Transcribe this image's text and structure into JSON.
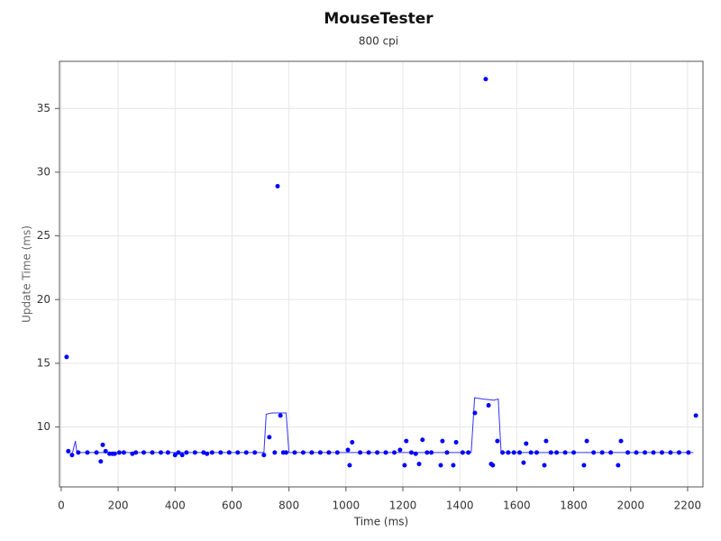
{
  "chart_data": {
    "type": "scatter",
    "title": "MouseTester",
    "subtitle": "800 cpi",
    "x_label": "Time (ms)",
    "y_label": "Update Time (ms)",
    "xlim": [
      -6,
      2254
    ],
    "ylim": [
      5.3,
      38.7
    ],
    "xticks": [
      0,
      200,
      400,
      600,
      800,
      1000,
      1200,
      1400,
      1600,
      1800,
      2000,
      2200
    ],
    "yticks": [
      10,
      15,
      20,
      25,
      30,
      35
    ],
    "grid": true,
    "points": {
      "color": "#0000ff",
      "x": [
        19,
        25,
        38,
        60,
        92,
        124,
        139,
        146,
        156,
        170,
        180,
        188,
        204,
        220,
        250,
        262,
        290,
        320,
        350,
        375,
        400,
        412,
        425,
        440,
        470,
        500,
        512,
        530,
        560,
        590,
        620,
        650,
        680,
        712,
        731,
        750,
        760,
        770,
        780,
        790,
        820,
        850,
        880,
        910,
        940,
        970,
        1007,
        1013,
        1022,
        1050,
        1080,
        1110,
        1140,
        1170,
        1190,
        1206,
        1212,
        1230,
        1245,
        1257,
        1269,
        1285,
        1300,
        1333,
        1339,
        1355,
        1377,
        1387,
        1410,
        1430,
        1453,
        1491,
        1501,
        1510,
        1516,
        1532,
        1550,
        1570,
        1590,
        1610,
        1624,
        1633,
        1650,
        1670,
        1697,
        1703,
        1720,
        1740,
        1770,
        1800,
        1836,
        1846,
        1870,
        1900,
        1930,
        1956,
        1966,
        1990,
        2020,
        2050,
        2080,
        2110,
        2140,
        2170,
        2203,
        2229
      ],
      "values": [
        15.5,
        8.1,
        7.8,
        8.0,
        8.0,
        8.0,
        7.3,
        8.6,
        8.1,
        7.9,
        7.9,
        7.9,
        8.0,
        8.0,
        7.9,
        8.0,
        8.0,
        8.0,
        8.0,
        8.0,
        7.8,
        8.0,
        7.8,
        8.0,
        8.0,
        8.0,
        7.9,
        8.0,
        8.0,
        8.0,
        8.0,
        8.0,
        8.0,
        7.8,
        9.2,
        8.0,
        28.9,
        10.9,
        8.0,
        8.0,
        8.0,
        8.0,
        8.0,
        8.0,
        8.0,
        8.0,
        8.2,
        7.0,
        8.8,
        8.0,
        8.0,
        8.0,
        8.0,
        8.0,
        8.2,
        7.0,
        8.9,
        8.0,
        7.9,
        7.1,
        9.0,
        8.0,
        8.0,
        7.0,
        8.9,
        8.0,
        7.0,
        8.8,
        8.0,
        8.0,
        11.1,
        37.3,
        11.7,
        7.1,
        7.0,
        8.9,
        8.0,
        8.0,
        8.0,
        8.0,
        7.2,
        8.7,
        8.0,
        8.0,
        7.0,
        8.9,
        8.0,
        8.0,
        8.0,
        8.0,
        7.0,
        8.9,
        8.0,
        8.0,
        8.0,
        7.0,
        8.9,
        8.0,
        8.0,
        8.0,
        8.0,
        8.0,
        8.0,
        8.0,
        8.0,
        10.9
      ]
    },
    "line": {
      "color": "#3333ff",
      "x": [
        40,
        50,
        55,
        700,
        712,
        720,
        740,
        790,
        800,
        1440,
        1452,
        1480,
        1520,
        1535,
        1545,
        2220
      ],
      "values": [
        8.0,
        8.9,
        8.0,
        8.0,
        8.0,
        11.0,
        11.1,
        11.1,
        8.0,
        8.0,
        12.3,
        12.2,
        12.1,
        12.2,
        8.0,
        8.0
      ]
    }
  }
}
